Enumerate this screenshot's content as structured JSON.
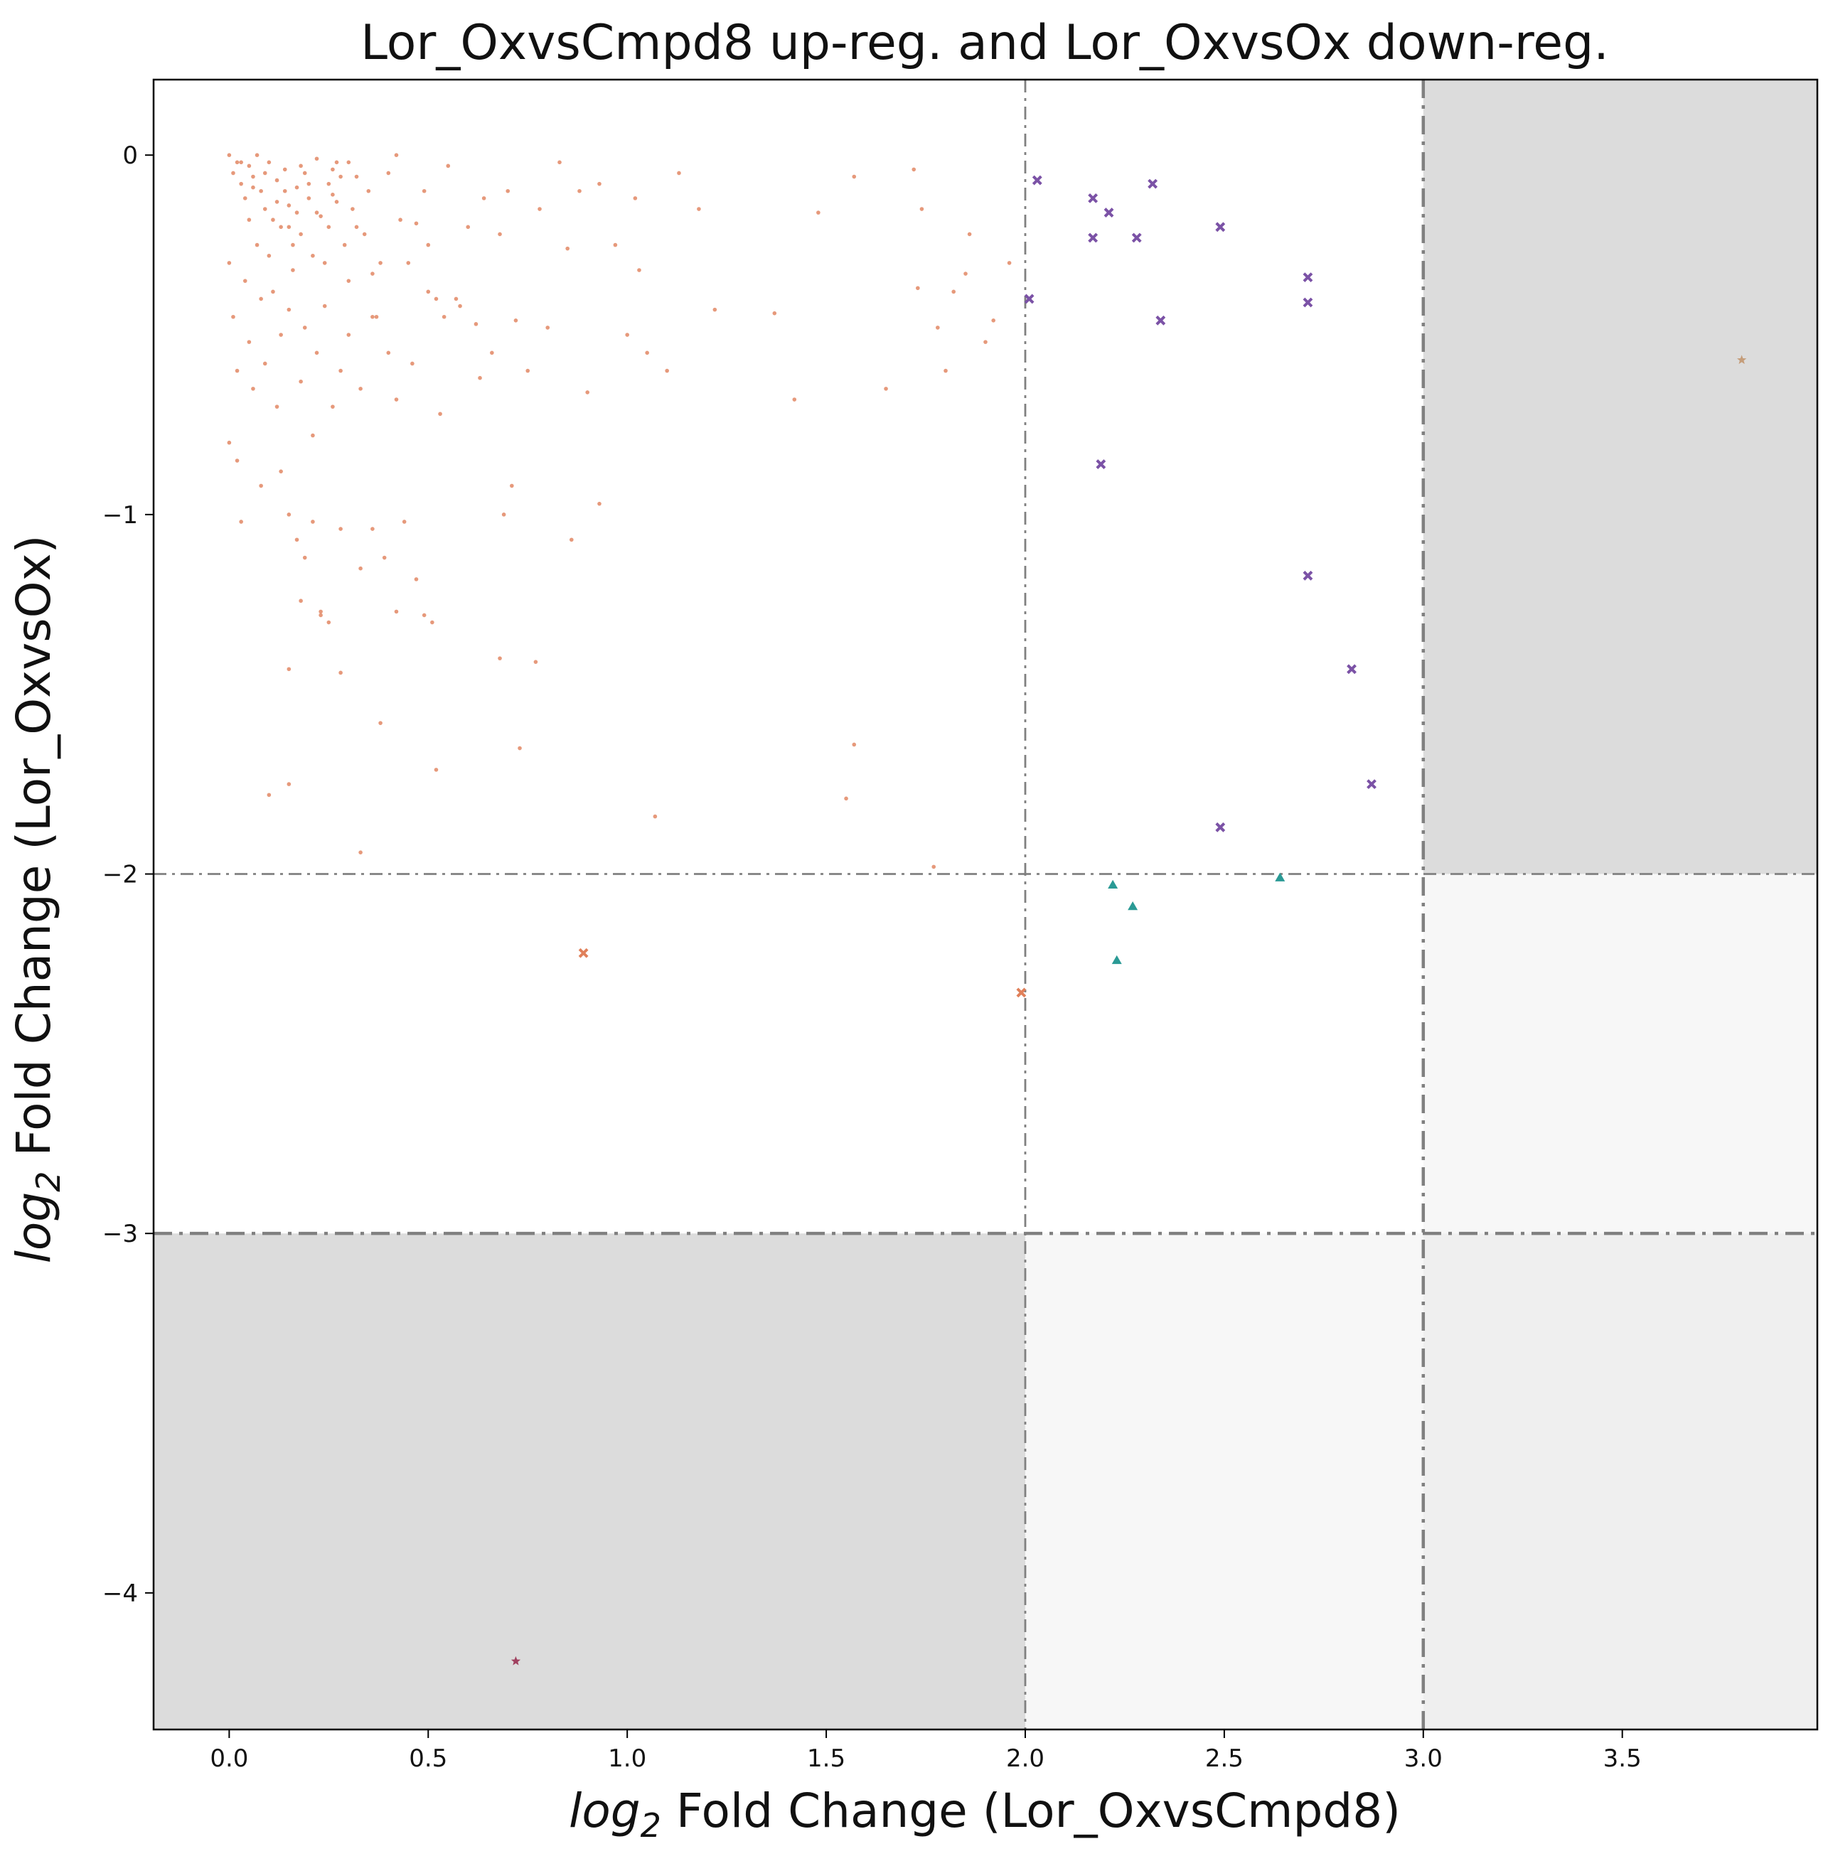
{
  "chart_data": {
    "type": "scatter",
    "title": "Lor_OxvsCmpd8 up-reg. and Lor_OxvsOx down-reg.",
    "xlabel_italic": "log",
    "xlabel_sub": "2",
    "xlabel_rest": " Fold Change (Lor_OxvsCmpd8)",
    "ylabel_italic": "log",
    "ylabel_sub": "2",
    "ylabel_rest": " Fold Change (Lor_OxvsOx)",
    "xlim": [
      -0.19,
      3.99
    ],
    "ylim": [
      -4.38,
      0.21
    ],
    "x_ticks": [
      0.0,
      0.5,
      1.0,
      1.5,
      2.0,
      2.5,
      3.0,
      3.5
    ],
    "x_tick_labels": [
      "0.0",
      "0.5",
      "1.0",
      "1.5",
      "2.0",
      "2.5",
      "3.0",
      "3.5"
    ],
    "y_ticks": [
      0,
      -1,
      -2,
      -3,
      -4
    ],
    "y_tick_labels": [
      "0",
      "−1",
      "−2",
      "−3",
      "−4"
    ],
    "threshold_lines": {
      "vertical": [
        {
          "x": 2.0,
          "style": "thin"
        },
        {
          "x": 3.0,
          "style": "thick"
        }
      ],
      "horizontal": [
        {
          "y": -2.0,
          "style": "thin"
        },
        {
          "y": -3.0,
          "style": "thick"
        }
      ]
    },
    "shaded_regions": [
      {
        "x": [
          3.0,
          3.99
        ],
        "y": [
          -2.0,
          0.21
        ],
        "color": "#dcdcdc"
      },
      {
        "x": [
          -0.19,
          2.0
        ],
        "y": [
          -4.38,
          -3.0
        ],
        "color": "#dcdcdc"
      },
      {
        "x": [
          2.0,
          3.0
        ],
        "y": [
          -4.38,
          -3.0
        ],
        "color": "#f7f7f7"
      },
      {
        "x": [
          3.0,
          3.99
        ],
        "y": [
          -3.0,
          -2.0
        ],
        "color": "#f7f7f7"
      },
      {
        "x": [
          3.0,
          3.99
        ],
        "y": [
          -4.38,
          -3.0
        ],
        "color": "#efefef"
      }
    ],
    "series": [
      {
        "marker": "dot",
        "color": "#e0805a",
        "points": [
          [
            0.0,
            0.0
          ],
          [
            0.01,
            -0.05
          ],
          [
            0.02,
            -0.02
          ],
          [
            0.03,
            -0.08
          ],
          [
            0.04,
            -0.12
          ],
          [
            0.05,
            -0.03
          ],
          [
            0.06,
            -0.06
          ],
          [
            0.07,
            0.0
          ],
          [
            0.08,
            -0.1
          ],
          [
            0.09,
            -0.15
          ],
          [
            0.1,
            -0.02
          ],
          [
            0.11,
            -0.18
          ],
          [
            0.12,
            -0.07
          ],
          [
            0.13,
            -0.2
          ],
          [
            0.14,
            -0.04
          ],
          [
            0.15,
            -0.14
          ],
          [
            0.16,
            -0.25
          ],
          [
            0.17,
            -0.09
          ],
          [
            0.18,
            -0.22
          ],
          [
            0.19,
            -0.05
          ],
          [
            0.2,
            -0.12
          ],
          [
            0.21,
            -0.28
          ],
          [
            0.22,
            -0.01
          ],
          [
            0.23,
            -0.17
          ],
          [
            0.24,
            -0.3
          ],
          [
            0.25,
            -0.08
          ],
          [
            0.26,
            -0.11
          ],
          [
            0.27,
            -0.02
          ],
          [
            0.28,
            -0.06
          ],
          [
            0.29,
            -0.25
          ],
          [
            0.3,
            -0.35
          ],
          [
            0.31,
            -0.15
          ],
          [
            0.32,
            -0.2
          ],
          [
            0.35,
            -0.1
          ],
          [
            0.37,
            -0.45
          ],
          [
            0.38,
            -0.3
          ],
          [
            0.4,
            -0.05
          ],
          [
            0.42,
            0.0
          ],
          [
            0.43,
            -0.18
          ],
          [
            0.45,
            -0.3
          ],
          [
            0.47,
            -0.19
          ],
          [
            0.49,
            -0.1
          ],
          [
            0.5,
            -0.25
          ],
          [
            0.52,
            -0.4
          ],
          [
            0.54,
            -0.45
          ],
          [
            0.55,
            -0.03
          ],
          [
            0.58,
            -0.42
          ],
          [
            0.6,
            -0.2
          ],
          [
            0.62,
            -0.47
          ],
          [
            0.64,
            -0.12
          ],
          [
            0.66,
            -0.55
          ],
          [
            0.68,
            -0.22
          ],
          [
            0.7,
            -0.1
          ],
          [
            0.72,
            -0.46
          ],
          [
            0.75,
            -0.6
          ],
          [
            0.78,
            -0.15
          ],
          [
            0.8,
            -0.48
          ],
          [
            0.83,
            -0.02
          ],
          [
            0.85,
            -0.26
          ],
          [
            0.88,
            -0.1
          ],
          [
            0.9,
            -0.66
          ],
          [
            0.93,
            -0.08
          ],
          [
            0.97,
            -0.25
          ],
          [
            1.0,
            -0.5
          ],
          [
            1.02,
            -0.12
          ],
          [
            1.03,
            -0.32
          ],
          [
            1.05,
            -0.55
          ],
          [
            1.1,
            -0.6
          ],
          [
            1.13,
            -0.05
          ],
          [
            1.18,
            -0.15
          ],
          [
            1.22,
            -0.43
          ],
          [
            1.37,
            -0.44
          ],
          [
            1.42,
            -0.68
          ],
          [
            1.48,
            -0.16
          ],
          [
            1.57,
            -0.06
          ],
          [
            1.65,
            -0.65
          ],
          [
            1.72,
            -0.04
          ],
          [
            1.73,
            -0.37
          ],
          [
            1.74,
            -0.15
          ],
          [
            1.78,
            -0.48
          ],
          [
            1.8,
            -0.6
          ],
          [
            1.82,
            -0.38
          ],
          [
            1.85,
            -0.33
          ],
          [
            1.86,
            -0.22
          ],
          [
            1.9,
            -0.52
          ],
          [
            1.92,
            -0.46
          ],
          [
            1.96,
            -0.3
          ],
          [
            0.0,
            -0.3
          ],
          [
            0.01,
            -0.45
          ],
          [
            0.02,
            -0.6
          ],
          [
            0.04,
            -0.35
          ],
          [
            0.05,
            -0.52
          ],
          [
            0.06,
            -0.65
          ],
          [
            0.08,
            -0.4
          ],
          [
            0.09,
            -0.58
          ],
          [
            0.11,
            -0.38
          ],
          [
            0.12,
            -0.7
          ],
          [
            0.13,
            -0.5
          ],
          [
            0.15,
            -0.43
          ],
          [
            0.16,
            -0.32
          ],
          [
            0.18,
            -0.63
          ],
          [
            0.19,
            -0.48
          ],
          [
            0.21,
            -0.78
          ],
          [
            0.22,
            -0.55
          ],
          [
            0.24,
            -0.42
          ],
          [
            0.26,
            -0.7
          ],
          [
            0.28,
            -0.6
          ],
          [
            0.3,
            -0.5
          ],
          [
            0.33,
            -0.65
          ],
          [
            0.36,
            -0.45
          ],
          [
            0.4,
            -0.55
          ],
          [
            0.42,
            -0.68
          ],
          [
            0.46,
            -0.58
          ],
          [
            0.5,
            -0.38
          ],
          [
            0.53,
            -0.72
          ],
          [
            0.57,
            -0.4
          ],
          [
            0.63,
            -0.62
          ],
          [
            0.0,
            -0.8
          ],
          [
            0.02,
            -0.85
          ],
          [
            0.03,
            -1.02
          ],
          [
            0.08,
            -0.92
          ],
          [
            0.13,
            -0.88
          ],
          [
            0.15,
            -1.0
          ],
          [
            0.17,
            -1.07
          ],
          [
            0.19,
            -1.12
          ],
          [
            0.21,
            -1.02
          ],
          [
            0.23,
            -1.27
          ],
          [
            0.25,
            -1.3
          ],
          [
            0.28,
            -1.04
          ],
          [
            0.33,
            -1.15
          ],
          [
            0.36,
            -1.04
          ],
          [
            0.39,
            -1.12
          ],
          [
            0.42,
            -1.27
          ],
          [
            0.44,
            -1.02
          ],
          [
            0.47,
            -1.18
          ],
          [
            0.49,
            -1.28
          ],
          [
            0.51,
            -1.3
          ],
          [
            0.71,
            -0.92
          ],
          [
            0.69,
            -1.0
          ],
          [
            0.77,
            -1.41
          ],
          [
            0.68,
            -1.4
          ],
          [
            0.73,
            -1.65
          ],
          [
            0.86,
            -1.07
          ],
          [
            0.93,
            -0.97
          ],
          [
            0.18,
            -1.24
          ],
          [
            0.15,
            -1.75
          ],
          [
            0.1,
            -1.78
          ],
          [
            0.38,
            -1.58
          ],
          [
            0.52,
            -1.71
          ],
          [
            0.33,
            -1.94
          ],
          [
            1.07,
            -1.84
          ],
          [
            1.55,
            -1.79
          ],
          [
            1.57,
            -1.64
          ],
          [
            1.77,
            -1.98
          ],
          [
            0.15,
            -1.43
          ],
          [
            0.28,
            -1.44
          ],
          [
            0.23,
            -1.28
          ],
          [
            0.05,
            -0.18
          ],
          [
            0.07,
            -0.25
          ],
          [
            0.1,
            -0.28
          ],
          [
            0.14,
            -0.1
          ],
          [
            0.17,
            -0.16
          ],
          [
            0.2,
            -0.08
          ],
          [
            0.25,
            -0.2
          ],
          [
            0.27,
            -0.13
          ],
          [
            0.32,
            -0.06
          ],
          [
            0.34,
            -0.22
          ],
          [
            0.03,
            -0.02
          ],
          [
            0.06,
            -0.09
          ],
          [
            0.09,
            -0.05
          ],
          [
            0.12,
            -0.13
          ],
          [
            0.15,
            -0.2
          ],
          [
            0.18,
            -0.03
          ],
          [
            0.22,
            -0.16
          ],
          [
            0.26,
            -0.04
          ],
          [
            0.3,
            -0.02
          ],
          [
            0.36,
            -0.33
          ]
        ]
      },
      {
        "marker": "x",
        "color": "#e0805a",
        "points": [
          [
            0.89,
            -2.22
          ],
          [
            1.99,
            -2.33
          ]
        ]
      },
      {
        "marker": "x",
        "color": "#7b52a6",
        "points": [
          [
            2.03,
            -0.07
          ],
          [
            2.01,
            -0.4
          ],
          [
            2.17,
            -0.12
          ],
          [
            2.21,
            -0.16
          ],
          [
            2.17,
            -0.23
          ],
          [
            2.28,
            -0.23
          ],
          [
            2.32,
            -0.08
          ],
          [
            2.49,
            -0.2
          ],
          [
            2.34,
            -0.46
          ],
          [
            2.71,
            -0.34
          ],
          [
            2.71,
            -0.41
          ],
          [
            2.19,
            -0.86
          ],
          [
            2.71,
            -1.17
          ],
          [
            2.82,
            -1.43
          ],
          [
            2.87,
            -1.75
          ],
          [
            2.49,
            -1.87
          ]
        ]
      },
      {
        "marker": "triangle",
        "color": "#2a9a95",
        "points": [
          [
            2.22,
            -2.03
          ],
          [
            2.27,
            -2.09
          ],
          [
            2.23,
            -2.24
          ],
          [
            2.64,
            -2.01
          ]
        ]
      },
      {
        "marker": "star",
        "color": "#c59d7a",
        "points": [
          [
            3.8,
            -0.57
          ]
        ]
      },
      {
        "marker": "star",
        "color": "#a0405f",
        "points": [
          [
            0.72,
            -4.19
          ]
        ]
      }
    ]
  }
}
